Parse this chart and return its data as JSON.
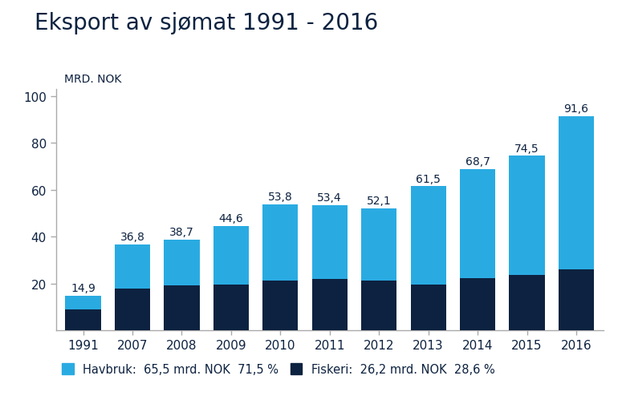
{
  "title": "Eksport av sjømat 1991 - 2016",
  "ylabel": "MRD. NOK",
  "categories": [
    "1991",
    "2007",
    "2008",
    "2009",
    "2010",
    "2011",
    "2012",
    "2013",
    "2014",
    "2015",
    "2016"
  ],
  "totals": [
    14.9,
    36.8,
    38.7,
    44.6,
    53.8,
    53.4,
    52.1,
    61.5,
    68.7,
    74.5,
    91.6
  ],
  "fiskeri": [
    9.0,
    18.0,
    19.2,
    19.5,
    21.2,
    22.0,
    21.2,
    19.5,
    22.2,
    23.5,
    26.2
  ],
  "color_havbruk": "#29ABE2",
  "color_fiskeri": "#0D2240",
  "color_title": "#0D2240",
  "color_axis": "#0D2240",
  "color_spine": "#AAAAAA",
  "background_color": "#FFFFFF",
  "ylim": [
    0,
    103
  ],
  "yticks": [
    20,
    40,
    60,
    80,
    100
  ],
  "legend_havbruk": "Havbruk:  65,5 mrd. NOK  71,5 %",
  "legend_fiskeri": "Fiskeri:  26,2 mrd. NOK  28,6 %",
  "title_fontsize": 20,
  "label_fontsize": 10,
  "tick_fontsize": 11,
  "legend_fontsize": 10.5,
  "bar_width": 0.72
}
